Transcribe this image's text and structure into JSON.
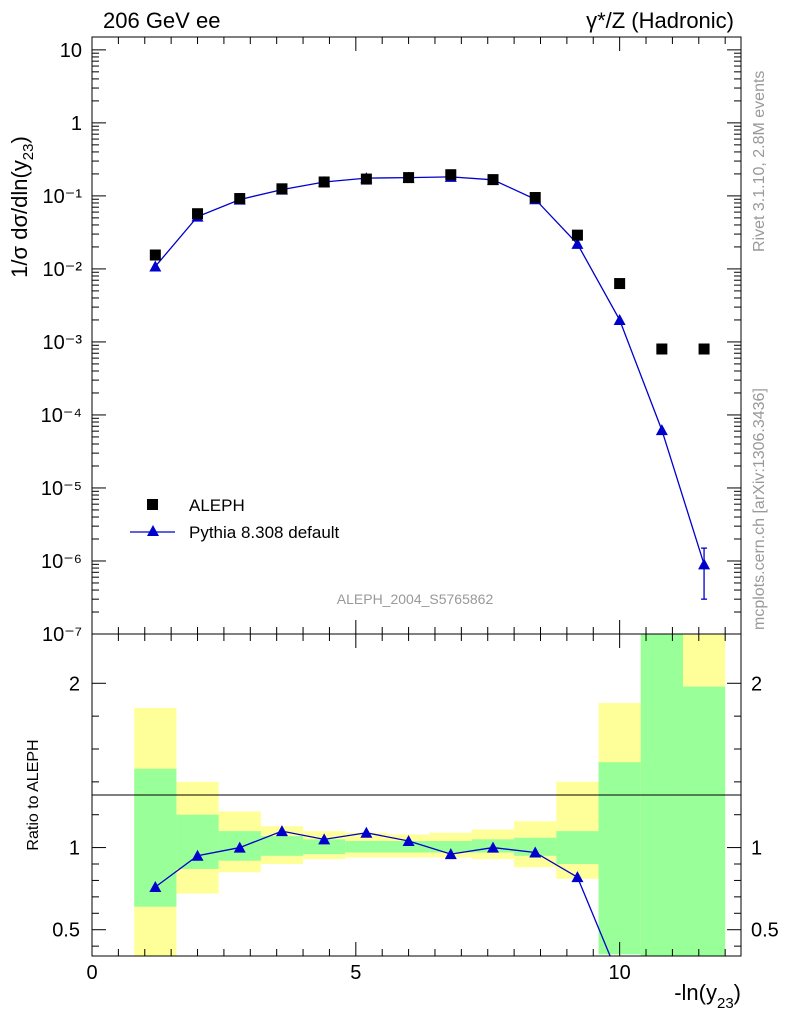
{
  "header": {
    "left": "206 GeV ee",
    "right": "γ*/Z (Hadronic)"
  },
  "side_labels": {
    "rivet": "Rivet 3.1.10,  2.8M events",
    "mcplots": "mcplots.cern.ch [arXiv:1306.3436]"
  },
  "watermark": "ALEPH_2004_S5765862",
  "chart_data": [
    {
      "type": "scatter",
      "panel": "main",
      "ylabel": "1/σ  dσ/dln(y23)",
      "yscale": "log",
      "xlim": [
        0,
        12.3
      ],
      "ylim": [
        1e-07,
        15
      ],
      "y_ticks": [
        {
          "value": 10,
          "label": "10"
        },
        {
          "value": 1,
          "label": "1"
        },
        {
          "value": 0.1,
          "label": "10⁻¹"
        },
        {
          "value": 0.01,
          "label": "10⁻²"
        },
        {
          "value": 0.001,
          "label": "10⁻³"
        },
        {
          "value": 0.0001,
          "label": "10⁻⁴"
        },
        {
          "value": 1e-05,
          "label": "10⁻⁵"
        },
        {
          "value": 1e-06,
          "label": "10⁻⁶"
        },
        {
          "value": 1e-07,
          "label": "10⁻⁷"
        }
      ],
      "legend": [
        {
          "name": "ALEPH",
          "marker": "square",
          "color": "#000000"
        },
        {
          "name": "Pythia 8.308 default",
          "marker": "triangle",
          "color": "#0000cc"
        }
      ],
      "series": [
        {
          "name": "ALEPH",
          "x": [
            1.2,
            2.0,
            2.8,
            3.6,
            4.4,
            5.2,
            6.0,
            6.8,
            7.6,
            8.4,
            9.2,
            10.0,
            10.8,
            11.6
          ],
          "y": [
            0.0155,
            0.057,
            0.092,
            0.125,
            0.155,
            0.17,
            0.178,
            0.195,
            0.167,
            0.095,
            0.029,
            0.0063,
            0.0008,
            0.0008
          ]
        },
        {
          "name": "Pythia 8.308 default",
          "x": [
            1.2,
            2.0,
            2.8,
            3.6,
            4.4,
            5.2,
            6.0,
            6.8,
            7.6,
            8.4,
            9.2,
            10.0,
            10.8,
            11.6
          ],
          "y": [
            0.0108,
            0.052,
            0.089,
            0.122,
            0.155,
            0.175,
            0.178,
            0.182,
            0.166,
            0.09,
            0.022,
            0.002,
            6.2e-05,
            9e-07
          ],
          "yerr_low": [
            0,
            0,
            0,
            0,
            0,
            0,
            0,
            0,
            0,
            0,
            0,
            0,
            0,
            6e-07
          ],
          "yerr_high": [
            0,
            0,
            0,
            0,
            0,
            0,
            0,
            0,
            0,
            0,
            0,
            0,
            0,
            6e-07
          ]
        }
      ]
    },
    {
      "type": "line",
      "panel": "ratio",
      "ylabel": "Ratio to ALEPH",
      "xlabel": "-ln(y23)",
      "xlim": [
        0,
        12.3
      ],
      "ylim": [
        0.34,
        2.3
      ],
      "x_ticks": [
        {
          "value": 0,
          "label": "0"
        },
        {
          "value": 5,
          "label": "5"
        },
        {
          "value": 10,
          "label": "10"
        }
      ],
      "y_ticks": [
        {
          "value": 2,
          "label": "2"
        },
        {
          "value": 1,
          "label": "1"
        },
        {
          "value": 0.5,
          "label": "0.5"
        }
      ],
      "bands": {
        "bin_edges": [
          0.8,
          1.6,
          2.4,
          3.2,
          4.0,
          4.8,
          5.6,
          6.4,
          7.2,
          8.0,
          8.8,
          9.6,
          10.4,
          11.2,
          12.0
        ],
        "green_low": [
          0.64,
          0.87,
          0.92,
          0.95,
          0.96,
          0.97,
          0.97,
          0.97,
          0.97,
          0.95,
          0.9,
          0.35,
          0.0,
          0.0
        ],
        "green_high": [
          1.48,
          1.2,
          1.1,
          1.07,
          1.05,
          1.04,
          1.04,
          1.04,
          1.05,
          1.06,
          1.1,
          1.52,
          2.4,
          1.98
        ],
        "yellow_low": [
          0.0,
          0.72,
          0.85,
          0.9,
          0.93,
          0.94,
          0.94,
          0.94,
          0.93,
          0.88,
          0.81,
          0.59,
          0.0,
          0.0
        ],
        "yellow_high": [
          1.85,
          1.4,
          1.22,
          1.13,
          1.1,
          1.09,
          1.08,
          1.09,
          1.11,
          1.16,
          1.4,
          1.88,
          2.4,
          2.4
        ]
      },
      "series": [
        {
          "name": "Pythia 8.308 default",
          "x": [
            1.2,
            2.0,
            2.8,
            3.6,
            4.4,
            5.2,
            6.0,
            6.8,
            7.6,
            8.4,
            9.2,
            10.0
          ],
          "y": [
            0.76,
            0.95,
            1.0,
            1.1,
            1.05,
            1.09,
            1.04,
            0.96,
            1.0,
            0.97,
            0.82,
            0.2
          ]
        }
      ]
    }
  ]
}
